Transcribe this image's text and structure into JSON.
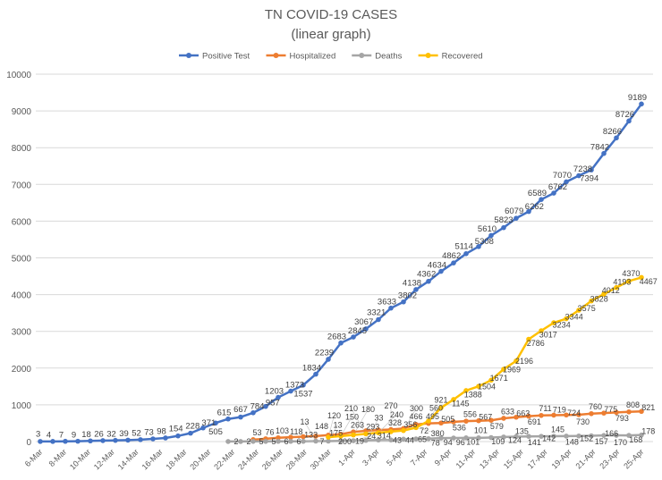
{
  "chart_data": {
    "type": "line",
    "title": "TN COVID-19 CASES",
    "subtitle": "(linear graph)",
    "xlabel": "",
    "ylabel": "",
    "ylim": [
      0,
      10000
    ],
    "yticks": [
      0,
      1000,
      2000,
      3000,
      4000,
      5000,
      6000,
      7000,
      8000,
      9000,
      10000
    ],
    "grid": true,
    "legend": "top",
    "x_tick_labels": [
      "6-Mar",
      "8-Mar",
      "10-Mar",
      "12-Mar",
      "14-Mar",
      "16-Mar",
      "18-Mar",
      "20-Mar",
      "22-Mar",
      "24-Mar",
      "26-Mar",
      "28-Mar",
      "30-Mar",
      "1-Apr",
      "3-Apr",
      "5-Apr",
      "7-Apr",
      "9-Apr",
      "11-Apr",
      "13-Apr",
      "15-Apr",
      "17-Apr",
      "19-Apr",
      "21-Apr",
      "23-Apr",
      "25-Apr"
    ],
    "series": [
      {
        "name": "Positive Test",
        "color": "#4472C4",
        "start": 0,
        "values": [
          3,
          4,
          7,
          9,
          18,
          26,
          32,
          39,
          52,
          73,
          98,
          154,
          228,
          371,
          505,
          615,
          667,
          784,
          957,
          1203,
          1373,
          1537,
          1834,
          2239,
          2683,
          2845,
          3067,
          3321,
          3633,
          3802,
          4138,
          4362,
          4634,
          4862,
          5114,
          5308,
          5610,
          5823,
          6079,
          6262,
          6589,
          6762,
          7070,
          7238,
          7394,
          7842,
          8266,
          8726,
          9189
        ]
      },
      {
        "name": "Hospitalized",
        "color": "#ED7D31",
        "start": 17,
        "values": [
          53,
          76,
          103,
          118,
          133,
          148,
          175,
          200,
          263,
          293,
          314,
          328,
          356,
          466,
          495,
          505,
          536,
          556,
          567,
          579,
          633,
          663,
          691,
          711,
          719,
          724,
          730,
          760,
          775,
          793,
          808,
          821
        ]
      },
      {
        "name": "Deaths",
        "color": "#A5A5A5",
        "start": 15,
        "values": [
          2,
          2,
          5,
          5,
          6,
          6,
          7,
          13,
          13,
          19,
          24,
          33,
          43,
          44,
          65,
          72,
          78,
          94,
          96,
          101,
          101,
          109,
          124,
          135,
          141,
          142,
          145,
          148,
          152,
          157,
          166,
          170,
          168,
          178
        ]
      },
      {
        "name": "Recovered",
        "color": "#FFC000",
        "start": 23,
        "values": [
          120,
          150,
          180,
          210,
          240,
          270,
          300,
          380,
          560,
          921,
          1145,
          1388,
          1504,
          1671,
          1969,
          2196,
          2786,
          3017,
          3234,
          3344,
          3575,
          3828,
          4012,
          4193,
          4370,
          4467
        ]
      }
    ]
  }
}
